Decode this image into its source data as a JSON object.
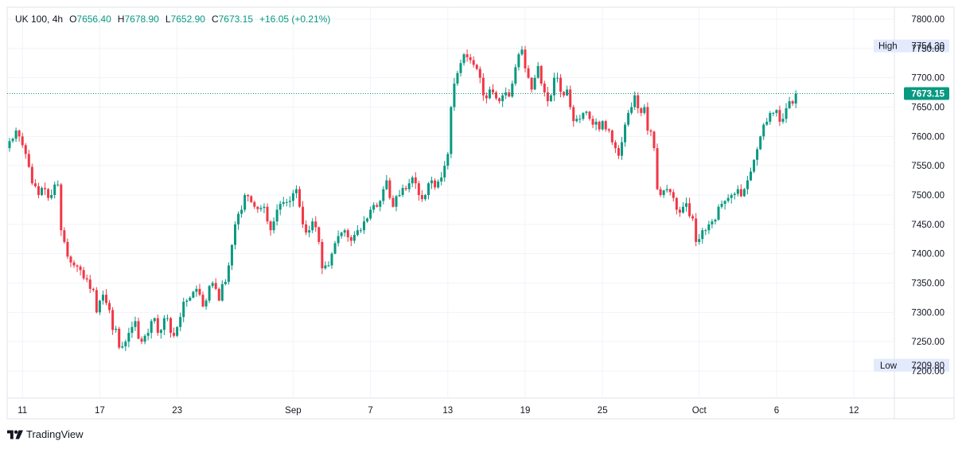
{
  "legend": {
    "symbol": "UK 100",
    "interval": "4h",
    "open_label": "O",
    "open": "7656.40",
    "high_label": "H",
    "high": "7678.90",
    "low_label": "L",
    "low": "7652.90",
    "close_label": "C",
    "close": "7673.15",
    "change": "+16.05 (+0.21%)"
  },
  "markers": {
    "high_label": "High",
    "high_value": "7754.30",
    "low_label": "Low",
    "low_value": "7209.80",
    "last_price": "7673.15"
  },
  "branding": {
    "name": "TradingView"
  },
  "colors": {
    "up": "#089981",
    "down": "#f23645",
    "grid": "#f0f3fa",
    "last_price_bg": "#089981",
    "marker_bg": "#e3eafc"
  },
  "chart_data": {
    "type": "candlestick",
    "title": "",
    "xlabel": "",
    "ylabel": "",
    "ylim": [
      7180,
      7820
    ],
    "y_ticks": [
      "7800.00",
      "7750.00",
      "7700.00",
      "7650.00",
      "7600.00",
      "7550.00",
      "7500.00",
      "7450.00",
      "7400.00",
      "7350.00",
      "7300.00",
      "7250.00",
      "7200.00"
    ],
    "x_ticks": [
      {
        "label": "11",
        "index": 4
      },
      {
        "label": "17",
        "index": 28
      },
      {
        "label": "23",
        "index": 52
      },
      {
        "label": "Sep",
        "index": 88
      },
      {
        "label": "7",
        "index": 112
      },
      {
        "label": "13",
        "index": 136
      },
      {
        "label": "19",
        "index": 160
      },
      {
        "label": "25",
        "index": 184
      },
      {
        "label": "Oct",
        "index": 214
      },
      {
        "label": "6",
        "index": 238
      },
      {
        "label": "12",
        "index": 262
      }
    ],
    "last_price": 7673.15,
    "session_high": 7754.3,
    "session_low": 7209.8,
    "grid": true,
    "closes": [
      7592,
      7596,
      7610,
      7600,
      7585,
      7570,
      7548,
      7520,
      7515,
      7500,
      7512,
      7510,
      7495,
      7500,
      7518,
      7518,
      7440,
      7420,
      7395,
      7385,
      7380,
      7378,
      7372,
      7358,
      7356,
      7340,
      7338,
      7300,
      7320,
      7330,
      7316,
      7304,
      7270,
      7272,
      7240,
      7242,
      7250,
      7265,
      7275,
      7285,
      7255,
      7250,
      7260,
      7265,
      7285,
      7290,
      7265,
      7270,
      7290,
      7290,
      7265,
      7260,
      7275,
      7292,
      7318,
      7320,
      7325,
      7335,
      7340,
      7330,
      7310,
      7320,
      7345,
      7350,
      7340,
      7320,
      7348,
      7352,
      7380,
      7415,
      7450,
      7468,
      7475,
      7500,
      7498,
      7488,
      7480,
      7476,
      7478,
      7480,
      7455,
      7440,
      7455,
      7475,
      7485,
      7488,
      7488,
      7490,
      7503,
      7510,
      7480,
      7450,
      7436,
      7440,
      7455,
      7445,
      7420,
      7375,
      7380,
      7380,
      7400,
      7418,
      7430,
      7436,
      7440,
      7428,
      7422,
      7432,
      7440,
      7440,
      7455,
      7460,
      7475,
      7483,
      7480,
      7490,
      7510,
      7525,
      7495,
      7480,
      7498,
      7500,
      7512,
      7510,
      7520,
      7530,
      7520,
      7500,
      7493,
      7500,
      7520,
      7525,
      7513,
      7523,
      7530,
      7550,
      7570,
      7650,
      7690,
      7708,
      7725,
      7740,
      7735,
      7730,
      7722,
      7715,
      7700,
      7670,
      7665,
      7680,
      7675,
      7665,
      7660,
      7670,
      7675,
      7668,
      7690,
      7718,
      7740,
      7748,
      7716,
      7700,
      7680,
      7700,
      7720,
      7690,
      7675,
      7660,
      7670,
      7700,
      7700,
      7676,
      7670,
      7680,
      7650,
      7626,
      7630,
      7630,
      7640,
      7642,
      7630,
      7620,
      7625,
      7612,
      7626,
      7612,
      7610,
      7590,
      7580,
      7567,
      7590,
      7620,
      7640,
      7650,
      7670,
      7648,
      7640,
      7650,
      7610,
      7608,
      7580,
      7510,
      7500,
      7508,
      7510,
      7505,
      7495,
      7475,
      7470,
      7480,
      7486,
      7464,
      7460,
      7420,
      7425,
      7440,
      7440,
      7450,
      7455,
      7458,
      7480,
      7485,
      7490,
      7495,
      7500,
      7502,
      7510,
      7498,
      7510,
      7525,
      7540,
      7560,
      7578,
      7600,
      7620,
      7625,
      7640,
      7640,
      7645,
      7625,
      7630,
      7648,
      7660,
      7656,
      7673
    ]
  }
}
